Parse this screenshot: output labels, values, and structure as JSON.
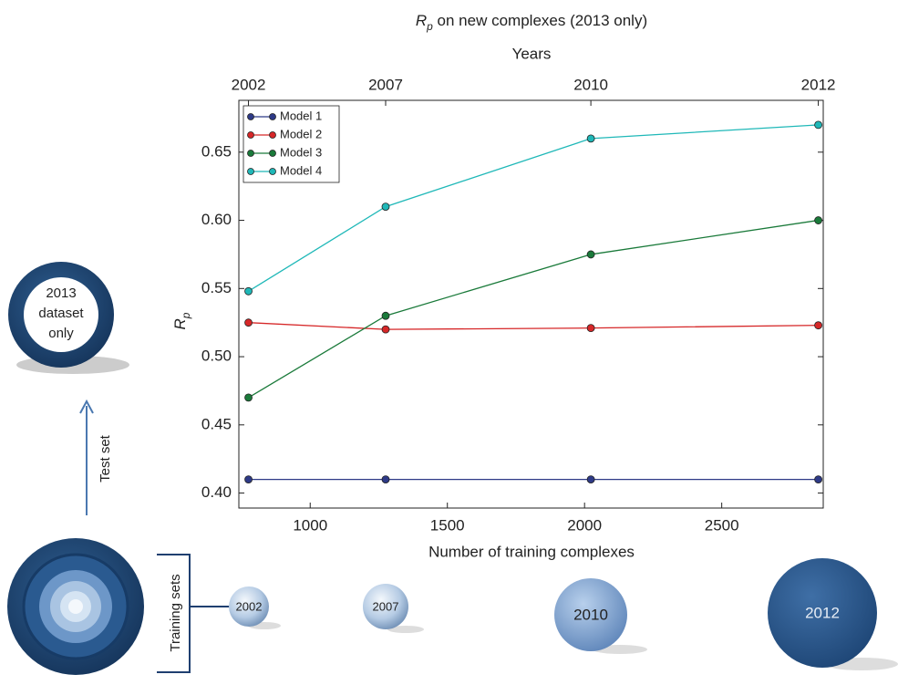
{
  "chart_data": {
    "type": "line",
    "title_symbol": "R",
    "title_subscript": "p",
    "title_rest": " on new complexes (2013 only)",
    "x_top_label": "Years",
    "x_label": "Number of training complexes",
    "y_label_symbol": "R",
    "y_label_subscript": "p",
    "x": [
      775,
      1275,
      2023,
      2852
    ],
    "series": [
      {
        "name": "Model 1",
        "color": "#2e3a87",
        "values": [
          0.41,
          0.41,
          0.41,
          0.41
        ]
      },
      {
        "name": "Model 2",
        "color": "#d62728",
        "values": [
          0.525,
          0.52,
          0.521,
          0.523
        ]
      },
      {
        "name": "Model 3",
        "color": "#1a7a3a",
        "values": [
          0.47,
          0.53,
          0.575,
          0.6
        ]
      },
      {
        "name": "Model 4",
        "color": "#1fb8b8",
        "values": [
          0.548,
          0.61,
          0.66,
          0.67
        ]
      }
    ],
    "xlim": [
      740,
      2870
    ],
    "ylim": [
      0.389,
      0.688
    ],
    "xticks": [
      1000,
      1500,
      2000,
      2500
    ],
    "x_top_ticks": [
      {
        "value": 775,
        "label": "2002"
      },
      {
        "value": 1275,
        "label": "2007"
      },
      {
        "value": 2023,
        "label": "2010"
      },
      {
        "value": 2852,
        "label": "2012"
      }
    ],
    "yticks": [
      {
        "value": 0.4,
        "label": "0.40"
      },
      0.45,
      {
        "value": 0.5,
        "label": "0.50"
      },
      0.55,
      {
        "value": 0.6,
        "label": "0.60"
      },
      0.65
    ],
    "legend": "upper left",
    "grid": false
  },
  "diagram": {
    "test_dataset": [
      "2013",
      "dataset",
      "only"
    ],
    "test_arrow_label": "Test set",
    "training_label": "Training sets",
    "training_sets": [
      "2002",
      "2007",
      "2010",
      "2012"
    ]
  }
}
